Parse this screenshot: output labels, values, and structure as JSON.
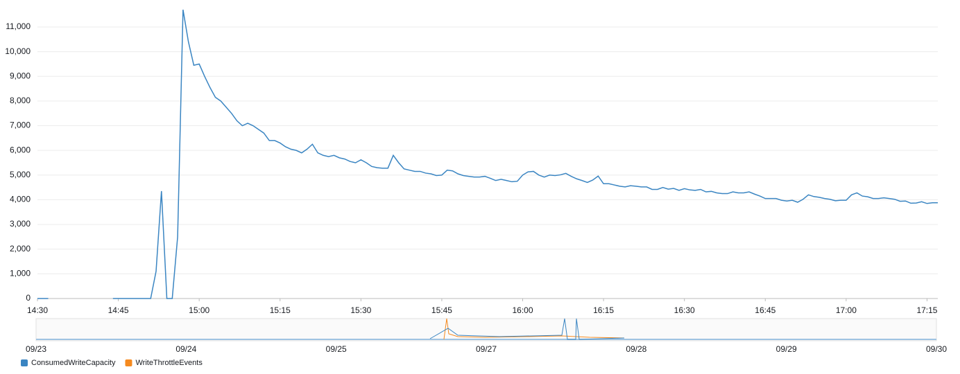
{
  "chart_data": {
    "type": "line",
    "x": [
      "14:30",
      "14:31",
      "14:32",
      "14:33",
      "14:44",
      "14:45",
      "14:46",
      "14:47",
      "14:48",
      "14:49",
      "14:50",
      "14:51",
      "14:52",
      "14:53",
      "14:54",
      "14:55",
      "14:56",
      "14:57",
      "14:58",
      "14:59",
      "15:00",
      "15:01",
      "15:02",
      "15:03",
      "15:04",
      "15:05",
      "15:06",
      "15:07",
      "15:08",
      "15:09",
      "15:10",
      "15:11",
      "15:12",
      "15:13",
      "15:14",
      "15:15",
      "15:16",
      "15:17",
      "15:18",
      "15:19",
      "15:20",
      "15:21",
      "15:22",
      "15:23",
      "15:24",
      "15:25",
      "15:26",
      "15:27",
      "15:28",
      "15:29",
      "15:30",
      "15:31",
      "15:32",
      "15:33",
      "15:34",
      "15:35",
      "15:36",
      "15:37",
      "15:38",
      "15:39",
      "15:40",
      "15:41",
      "15:42",
      "15:43",
      "15:44",
      "15:45",
      "15:46",
      "15:47",
      "15:48",
      "15:49",
      "15:50",
      "15:51",
      "15:52",
      "15:53",
      "15:54",
      "15:55",
      "15:56",
      "15:57",
      "15:58",
      "15:59",
      "16:00",
      "16:01",
      "16:02",
      "16:03",
      "16:04",
      "16:05",
      "16:06",
      "16:07",
      "16:08",
      "16:09",
      "16:10",
      "16:11",
      "16:12",
      "16:13",
      "16:14",
      "16:15",
      "16:16",
      "16:17",
      "16:18",
      "16:19",
      "16:20",
      "16:21",
      "16:22",
      "16:23",
      "16:24",
      "16:25",
      "16:26",
      "16:27",
      "16:28",
      "16:29",
      "16:30",
      "16:31",
      "16:32",
      "16:33",
      "16:34",
      "16:35",
      "16:36",
      "16:37",
      "16:38",
      "16:39",
      "16:40",
      "16:41",
      "16:42",
      "16:43",
      "16:44",
      "16:45",
      "16:46",
      "16:47",
      "16:48",
      "16:49",
      "16:50",
      "16:51",
      "16:52",
      "16:53",
      "16:54",
      "16:55",
      "16:56",
      "16:57",
      "16:58",
      "16:59",
      "17:00",
      "17:01",
      "17:02",
      "17:03",
      "17:04",
      "17:05",
      "17:06",
      "17:07",
      "17:08",
      "17:09",
      "17:10",
      "17:11",
      "17:12",
      "17:13",
      "17:14",
      "17:15",
      "17:16",
      "17:17"
    ],
    "series": [
      {
        "color": "#3a85c2",
        "values": [
          0,
          0,
          0,
          null,
          0,
          0,
          0,
          0,
          0,
          0,
          0,
          0,
          1100,
          4350,
          0,
          0,
          2500,
          11700,
          10400,
          9450,
          9500,
          9000,
          8550,
          8150,
          8000,
          7750,
          7500,
          7200,
          7000,
          7100,
          7000,
          6850,
          6700,
          6400,
          6400,
          6300,
          6150,
          6050,
          6000,
          5900,
          6050,
          6250,
          5900,
          5800,
          5750,
          5800,
          5700,
          5650,
          5550,
          5500,
          5620,
          5500,
          5350,
          5300,
          5280,
          5280,
          5800,
          5500,
          5250,
          5200,
          5150,
          5150,
          5080,
          5050,
          4980,
          5000,
          5200,
          5170,
          5050,
          4980,
          4950,
          4920,
          4920,
          4950,
          4870,
          4780,
          4830,
          4780,
          4730,
          4750,
          5000,
          5130,
          5150,
          5000,
          4920,
          5000,
          4980,
          5010,
          5070,
          4950,
          4850,
          4780,
          4700,
          4800,
          4960,
          4650,
          4650,
          4600,
          4550,
          4520,
          4570,
          4550,
          4520,
          4520,
          4420,
          4420,
          4500,
          4430,
          4460,
          4380,
          4450,
          4400,
          4380,
          4420,
          4320,
          4340,
          4280,
          4250,
          4250,
          4320,
          4280,
          4280,
          4320,
          4230,
          4150,
          4050,
          4050,
          4050,
          3980,
          3950,
          3980,
          3900,
          4020,
          4200,
          4130,
          4100,
          4050,
          4020,
          3960,
          3980,
          3980,
          4200,
          4280,
          4150,
          4120,
          4050,
          4050,
          4080,
          4050,
          4020,
          3940,
          3950,
          3860,
          3870,
          3920,
          3850,
          3880,
          3880
        ]
      }
    ],
    "xlim": [
      "14:30",
      "17:17"
    ],
    "xticks": [
      "14:30",
      "14:45",
      "15:00",
      "15:15",
      "15:30",
      "15:45",
      "16:00",
      "16:15",
      "16:30",
      "16:45",
      "17:00",
      "17:15"
    ],
    "ylim": [
      0,
      11700
    ],
    "yticks": [
      0,
      {
        "value": 1000,
        "label": "1,000"
      },
      {
        "value": 2000,
        "label": "2,000"
      },
      {
        "value": 3000,
        "label": "3,000"
      },
      {
        "value": 4000,
        "label": "4,000"
      },
      {
        "value": 5000,
        "label": "5,000"
      },
      {
        "value": 6000,
        "label": "6,000"
      },
      {
        "value": 7000,
        "label": "7,000"
      },
      {
        "value": 8000,
        "label": "8,000"
      },
      {
        "value": 9000,
        "label": "9,000"
      },
      {
        "value": 10000,
        "label": "10,000"
      },
      {
        "value": 11000,
        "label": "11,000"
      }
    ],
    "grid": true,
    "overview_dates": [
      "09/23",
      "09/24",
      "09/25",
      "09/27",
      "09/28",
      "09/29",
      "09/30"
    ],
    "legend": [
      {
        "name": "ConsumedWriteCapacity",
        "color": "#3a85c2"
      },
      {
        "name": "WriteThrottleEvents",
        "color": "#f58a1f"
      }
    ]
  }
}
